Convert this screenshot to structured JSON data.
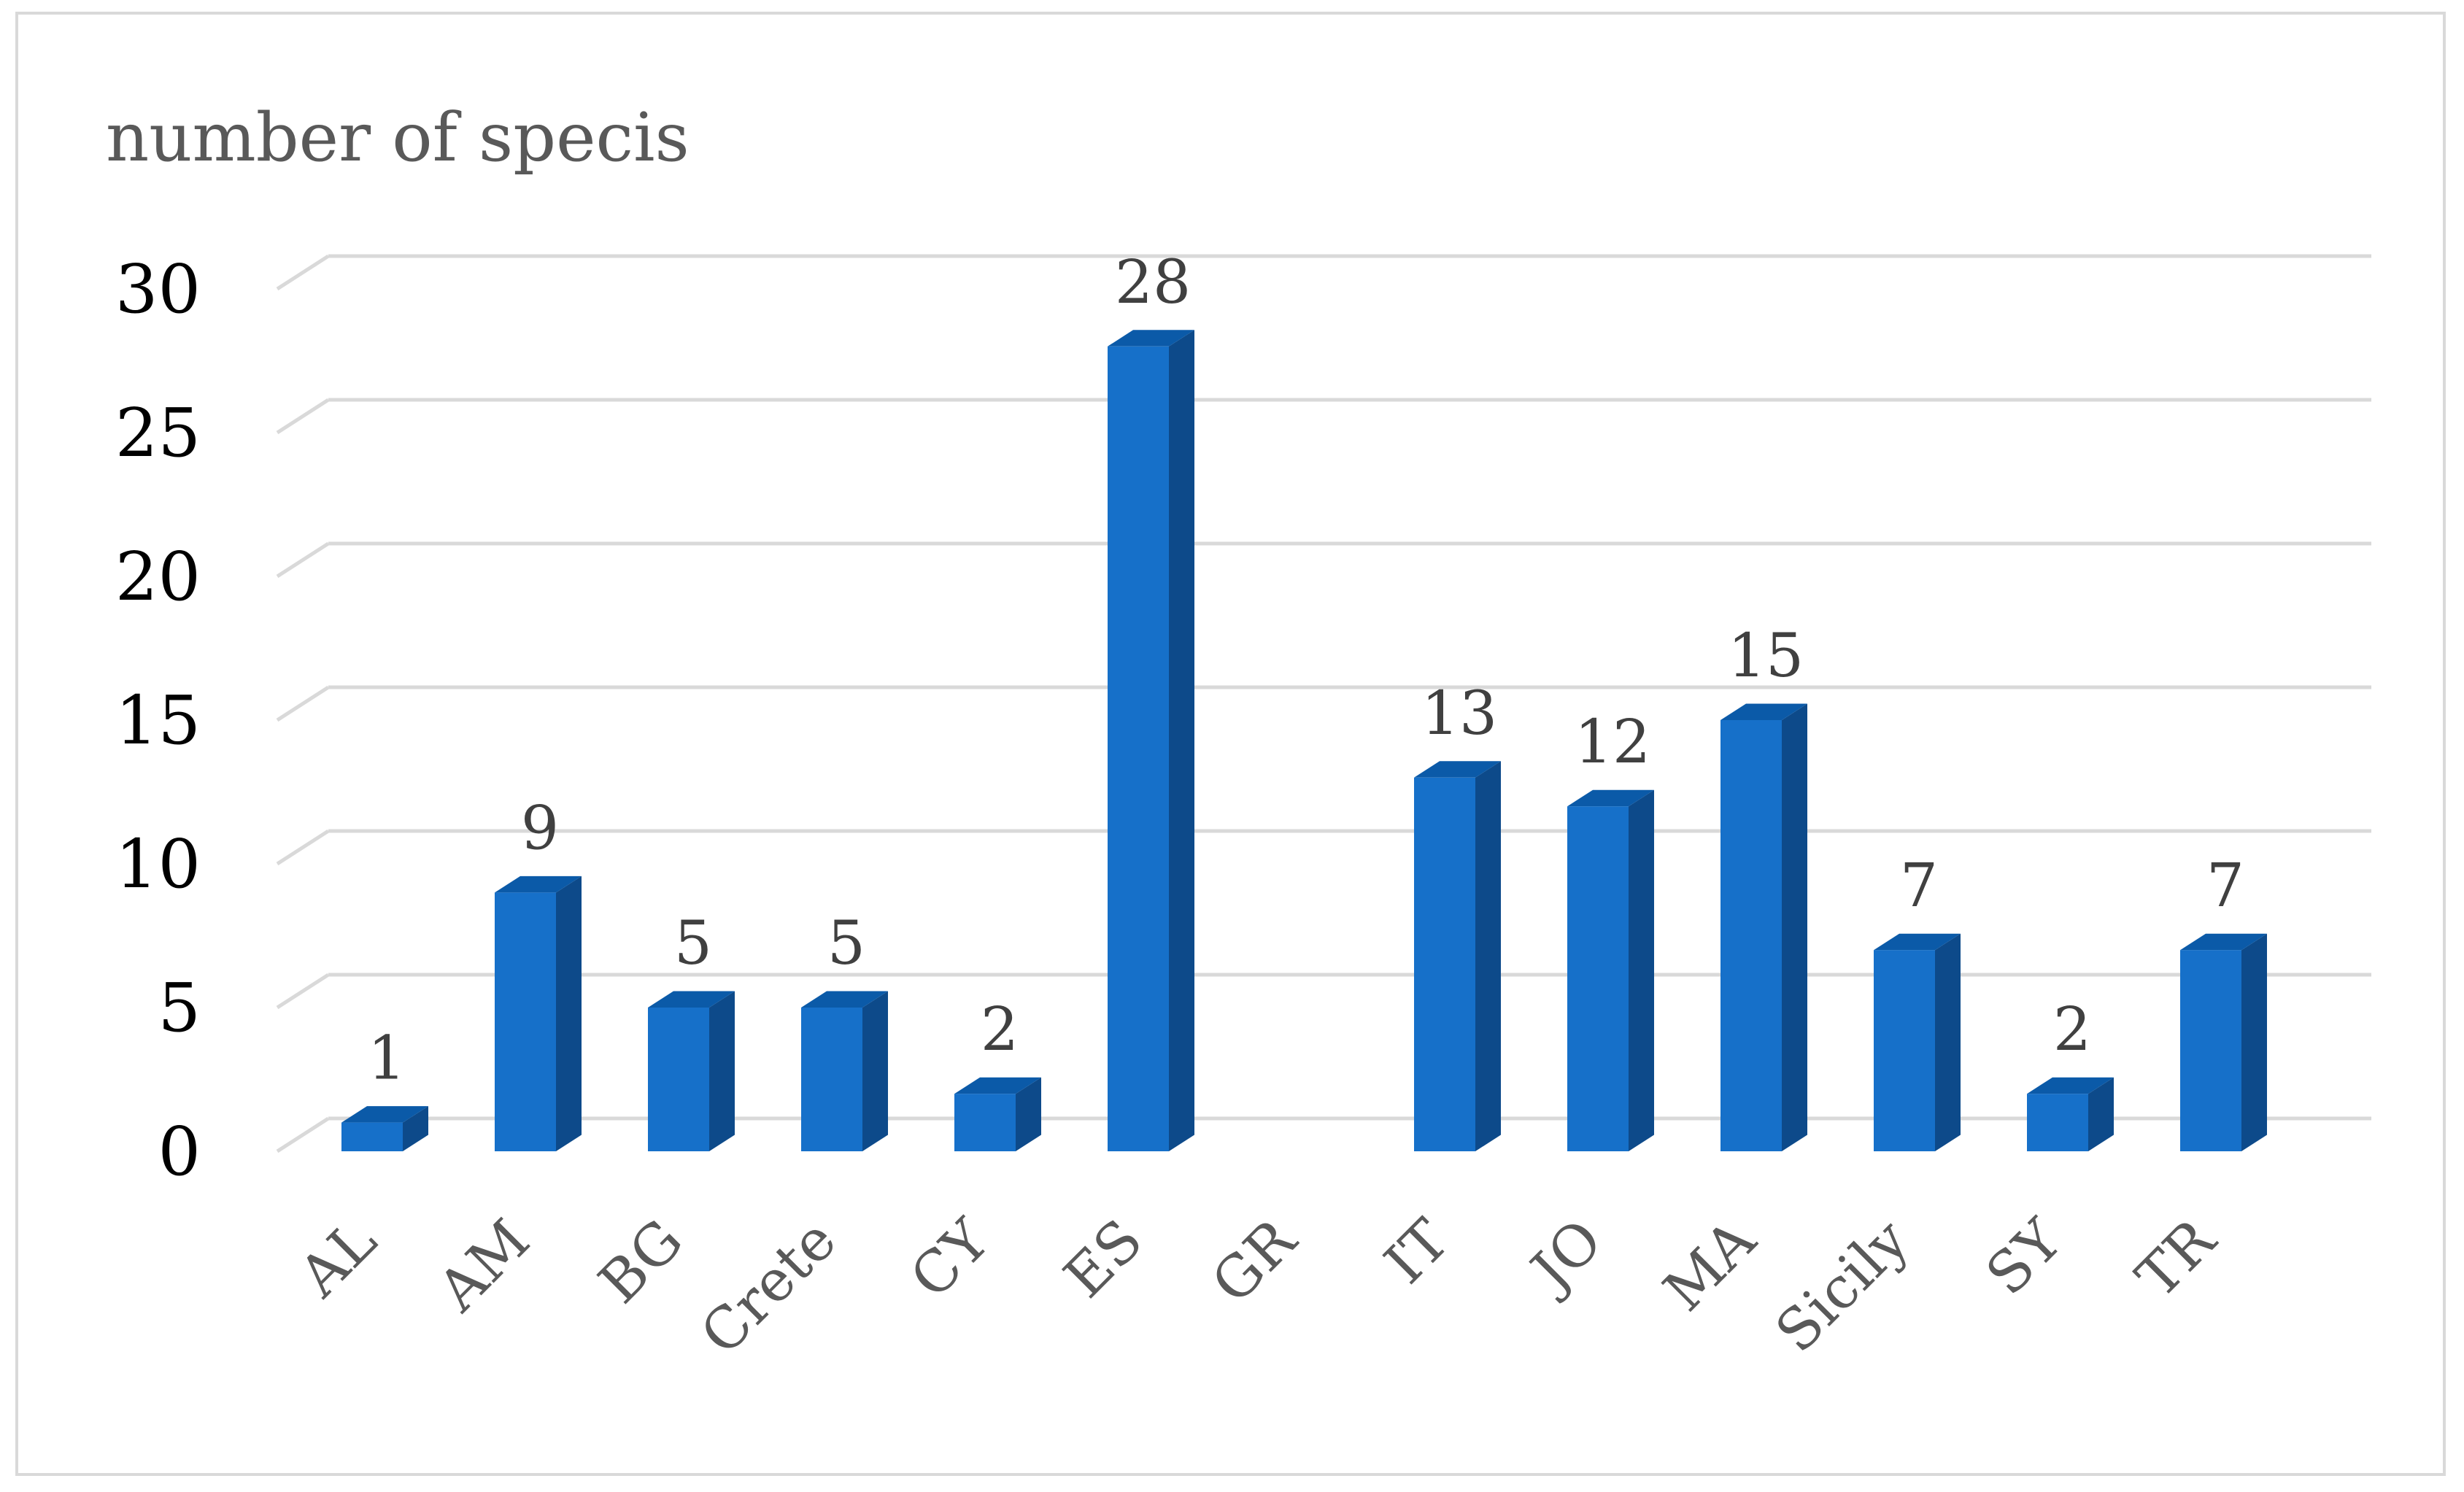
{
  "chart_data": {
    "type": "bar",
    "style": "3d-column",
    "title": "number of specis",
    "xlabel": "",
    "ylabel": "",
    "categories": [
      "AL",
      "AM",
      "BG",
      "Crete",
      "CY",
      "ES",
      "GR",
      "IT",
      "JO",
      "MA",
      "Sicily",
      "SY",
      "TR"
    ],
    "values": [
      1,
      9,
      5,
      5,
      2,
      28,
      null,
      13,
      12,
      15,
      7,
      2,
      7
    ],
    "data_labels": [
      "1",
      "9",
      "5",
      "5",
      "2",
      "28",
      "",
      "13",
      "12",
      "15",
      "7",
      "2",
      "7"
    ],
    "yticks": [
      "0",
      "5",
      "10",
      "15",
      "20",
      "25",
      "30"
    ],
    "ylim": [
      0,
      30
    ],
    "grid": true,
    "legend": "none",
    "colors": {
      "bar_front": "#1670c9",
      "bar_top": "#0b5aa8",
      "bar_side": "#0d4a8a",
      "grid": "#d9d9d9",
      "frame": "#d9d9d9"
    }
  }
}
